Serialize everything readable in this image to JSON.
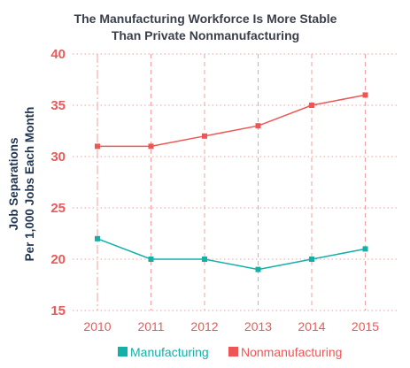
{
  "colors": {
    "manufacturing": "#14b0a8",
    "nonmanufacturing": "#ee5656",
    "grid": "#f0a0a0",
    "axis_text": "#e85a5a",
    "title": "#3a3f4b",
    "ylabel": "#1f3450"
  },
  "chart_data": {
    "type": "line",
    "title_lines": [
      "The Manufacturing Workforce Is More Stable",
      "Than Private Nonmanufacturing"
    ],
    "ylabel_lines": [
      "Job Separations",
      "Per 1,000 Jobs Each Month"
    ],
    "xlabel": "",
    "x": [
      2010,
      2011,
      2012,
      2013,
      2014,
      2015
    ],
    "x_tick_labels": [
      "2010",
      "2011",
      "2012",
      "2013",
      "2014",
      "2015"
    ],
    "ylim": [
      15,
      40
    ],
    "y_ticks": [
      15,
      20,
      25,
      30,
      35,
      40
    ],
    "grid": true,
    "legend_position": "bottom",
    "series": [
      {
        "name": "Manufacturing",
        "color_key": "manufacturing",
        "values": [
          22,
          20,
          20,
          19,
          20,
          21
        ]
      },
      {
        "name": "Nonmanufacturing",
        "color_key": "nonmanufacturing",
        "values": [
          31,
          31,
          32,
          33,
          35,
          36
        ]
      }
    ]
  }
}
